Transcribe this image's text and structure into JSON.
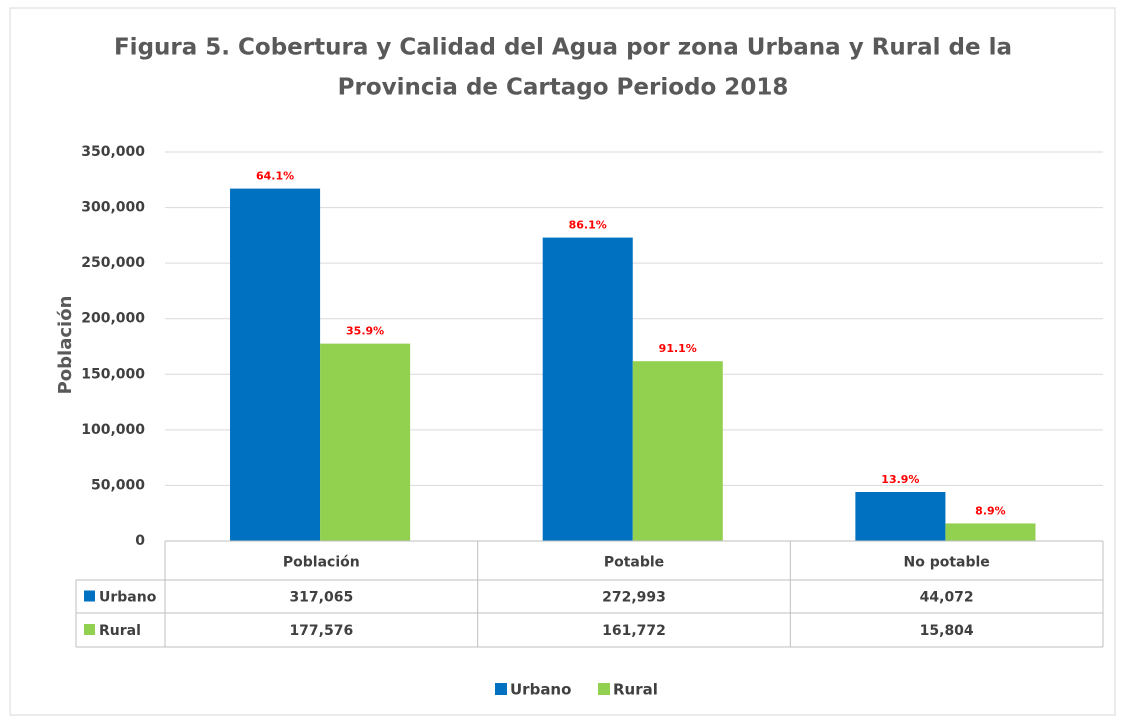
{
  "chart_data": {
    "type": "bar",
    "title": [
      "Figura 5. Cobertura y Calidad del Agua por zona Urbana y Rural de la",
      "Provincia de Cartago Periodo 2018"
    ],
    "y_label": "Población",
    "categories": [
      "Población",
      "Potable",
      "No potable"
    ],
    "series": [
      {
        "name": "Urbano",
        "color": "#0070c0",
        "values": [
          317065,
          272993,
          44072
        ],
        "value_labels": [
          "317,065",
          "272,993",
          "44,072"
        ],
        "annotations": [
          "64.1%",
          "86.1%",
          "13.9%"
        ]
      },
      {
        "name": "Rural",
        "color": "#92d050",
        "values": [
          177576,
          161772,
          15804
        ],
        "value_labels": [
          "177,576",
          "161,772",
          "15,804"
        ],
        "annotations": [
          "35.9%",
          "91.1%",
          "8.9%"
        ]
      }
    ],
    "ylim": [
      0,
      350000
    ],
    "yticks": [
      0,
      {
        "value": 50000,
        "label": "50,000"
      },
      {
        "value": 100000,
        "label": "100,000"
      },
      {
        "value": 150000,
        "label": "150,000"
      },
      {
        "value": 200000,
        "label": "200,000"
      },
      {
        "value": 250000,
        "label": "250,000"
      },
      {
        "value": 300000,
        "label": "300,000"
      },
      {
        "value": 350000,
        "label": "350,000"
      }
    ],
    "grid": true,
    "legend": "bottom",
    "annotation_color": "#ff0000"
  }
}
